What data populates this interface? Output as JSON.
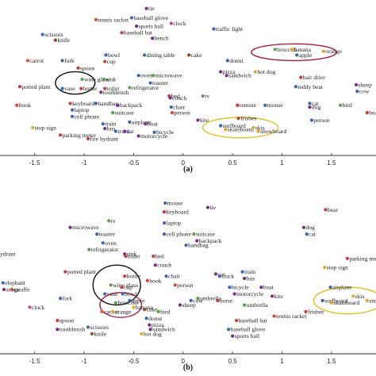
{
  "chart_data": [
    {
      "type": "scatter",
      "panel_label": "(a)",
      "xlim": [
        -1.85,
        1.95
      ],
      "x_ticks": [
        -1.5,
        -1,
        -0.5,
        0,
        0.5,
        1,
        1.5
      ],
      "tick_labels": [
        "-1.5",
        "-1",
        "-0.5",
        "0",
        "0.5",
        "1",
        "1.5"
      ],
      "grid": false,
      "points": [
        {
          "label": "tie",
          "x": -0.37,
          "y": 0.98,
          "c": "#7a2a8c"
        },
        {
          "label": "tennis racket",
          "x": -0.88,
          "y": 0.92,
          "c": "#d24a3a"
        },
        {
          "label": "baseball glove",
          "x": -0.52,
          "y": 0.93,
          "c": "#3a66b0"
        },
        {
          "label": "sports ball",
          "x": -0.47,
          "y": 0.885,
          "c": "#7a2a8c"
        },
        {
          "label": "clock",
          "x": -0.12,
          "y": 0.9,
          "c": "#c44c8a"
        },
        {
          "label": "traffic light",
          "x": 0.31,
          "y": 0.87,
          "c": "#3a66b0"
        },
        {
          "label": "baseball bat",
          "x": -0.62,
          "y": 0.85,
          "c": "#c73a3a"
        },
        {
          "label": "scissors",
          "x": -1.42,
          "y": 0.84,
          "c": "#3a66b0"
        },
        {
          "label": "knife",
          "x": -1.29,
          "y": 0.81,
          "c": "#8a4a2a"
        },
        {
          "label": "bench",
          "x": -0.31,
          "y": 0.82,
          "c": "#7a2a8c"
        },
        {
          "label": "broccoli",
          "x": 0.93,
          "y": 0.76,
          "c": "#5aa04a"
        },
        {
          "label": "banana",
          "x": 1.1,
          "y": 0.76,
          "c": "#d4b030"
        },
        {
          "label": "apple",
          "x": 1.15,
          "y": 0.73,
          "c": "#3a66b0"
        },
        {
          "label": "orange",
          "x": 1.42,
          "y": 0.75,
          "c": "#e0a030"
        },
        {
          "label": "carrot",
          "x": -1.57,
          "y": 0.7,
          "c": "#e06030"
        },
        {
          "label": "fork",
          "x": -1.22,
          "y": 0.7,
          "c": "#3a66b0"
        },
        {
          "label": "bowl",
          "x": -0.78,
          "y": 0.73,
          "c": "#3a66b0"
        },
        {
          "label": "cup",
          "x": -0.79,
          "y": 0.695,
          "c": "#c73a3a"
        },
        {
          "label": "dining table",
          "x": -0.39,
          "y": 0.73,
          "c": "#3a66b0"
        },
        {
          "label": "cake",
          "x": 0.06,
          "y": 0.73,
          "c": "#8a4a2a"
        },
        {
          "label": "donut",
          "x": 0.45,
          "y": 0.7,
          "c": "#3a66b0"
        },
        {
          "label": "hot dog",
          "x": 0.73,
          "y": 0.64,
          "c": "#d4b030"
        },
        {
          "label": "pizza",
          "x": 0.38,
          "y": 0.64,
          "c": "#7a2a8c"
        },
        {
          "label": "sandwich",
          "x": 0.44,
          "y": 0.62,
          "c": "#7a2a8c"
        },
        {
          "label": "spoon",
          "x": -1.06,
          "y": 0.66,
          "c": "#c73a3a"
        },
        {
          "label": "wine glass",
          "x": -1.02,
          "y": 0.6,
          "c": "#5aa04a"
        },
        {
          "label": "vase",
          "x": -1.22,
          "y": 0.55,
          "c": "#3a66b0"
        },
        {
          "label": "bottle",
          "x": -1.03,
          "y": 0.55,
          "c": "#c73a3a"
        },
        {
          "label": "potted plant",
          "x": -1.65,
          "y": 0.56,
          "c": "#c73a3a"
        },
        {
          "label": "sink",
          "x": -0.8,
          "y": 0.6,
          "c": "#5aa04a"
        },
        {
          "label": "toilet",
          "x": -0.79,
          "y": 0.55,
          "c": "#c73a3a"
        },
        {
          "label": "toothbrush",
          "x": -0.83,
          "y": 0.53,
          "c": "#7a2a8c"
        },
        {
          "label": "oven",
          "x": -0.45,
          "y": 0.62,
          "c": "#3a66b0"
        },
        {
          "label": "microwave",
          "x": -0.3,
          "y": 0.62,
          "c": "#5aa04a"
        },
        {
          "label": "toaster",
          "x": -0.33,
          "y": 0.58,
          "c": "#3a66b0"
        },
        {
          "label": "refrigerator",
          "x": -0.54,
          "y": 0.555,
          "c": "#5aa04a"
        },
        {
          "label": "hair drier",
          "x": 1.19,
          "y": 0.61,
          "c": "#c73a3a"
        },
        {
          "label": "teddy bear",
          "x": 1.14,
          "y": 0.56,
          "c": "#3a66b0"
        },
        {
          "label": "sheep",
          "x": 1.75,
          "y": 0.57,
          "c": "#7a2a8c"
        },
        {
          "label": "cow",
          "x": 1.76,
          "y": 0.535,
          "c": "#3a66b0"
        },
        {
          "label": "book",
          "x": -1.68,
          "y": 0.46,
          "c": "#d24a3a"
        },
        {
          "label": "keyboard",
          "x": -1.14,
          "y": 0.47,
          "c": "#c73a3a"
        },
        {
          "label": "laptop",
          "x": -1.12,
          "y": 0.435,
          "c": "#3a66b0"
        },
        {
          "label": "cell phone",
          "x": -1.12,
          "y": 0.4,
          "c": "#3a66b0"
        },
        {
          "label": "handbag",
          "x": -0.88,
          "y": 0.47,
          "c": "#3a66b0"
        },
        {
          "label": "backpack",
          "x": -0.66,
          "y": 0.46,
          "c": "#7a2a8c"
        },
        {
          "label": "suitcase",
          "x": -0.71,
          "y": 0.42,
          "c": "#5aa04a"
        },
        {
          "label": "bed",
          "x": -0.14,
          "y": 0.51,
          "c": "#c73a3a"
        },
        {
          "label": "couch",
          "x": -0.13,
          "y": 0.5,
          "c": "#7a2a8c"
        },
        {
          "label": "chair",
          "x": -0.12,
          "y": 0.45,
          "c": "#3a66b0"
        },
        {
          "label": "person",
          "x": -0.11,
          "y": 0.42,
          "c": "#d24a3a"
        },
        {
          "label": "tv",
          "x": 0.2,
          "y": 0.51,
          "c": "#5aa04a"
        },
        {
          "label": "remote",
          "x": 0.55,
          "y": 0.46,
          "c": "#c73a3a"
        },
        {
          "label": "mouse",
          "x": 0.83,
          "y": 0.46,
          "c": "#3a66b0"
        },
        {
          "label": "cat",
          "x": 1.28,
          "y": 0.47,
          "c": "#3a66b0"
        },
        {
          "label": "dog",
          "x": 1.28,
          "y": 0.45,
          "c": "#7a2a8c"
        },
        {
          "label": "bird",
          "x": 1.59,
          "y": 0.46,
          "c": "#5aa04a"
        },
        {
          "label": "bear",
          "x": 1.86,
          "y": 0.42,
          "c": "#c73a3a"
        },
        {
          "label": "person",
          "x": 1.3,
          "y": 0.38,
          "c": "#3a66b0"
        },
        {
          "label": "stop sign",
          "x": -1.52,
          "y": 0.34,
          "c": "#d4b030"
        },
        {
          "label": "train",
          "x": -0.81,
          "y": 0.36,
          "c": "#3a66b0"
        },
        {
          "label": "bus",
          "x": -0.79,
          "y": 0.335,
          "c": "#7a2a8c"
        },
        {
          "label": "airplane",
          "x": -0.54,
          "y": 0.37,
          "c": "#3a66b0"
        },
        {
          "label": "boat",
          "x": -0.38,
          "y": 0.36,
          "c": "#7a2a8c"
        },
        {
          "label": "kite",
          "x": 0.15,
          "y": 0.38,
          "c": "#7a2a8c"
        },
        {
          "label": "frisbee",
          "x": 0.56,
          "y": 0.39,
          "c": "#c73a3a"
        },
        {
          "label": "surfboard",
          "x": 0.38,
          "y": 0.35,
          "c": "#3a66b0"
        },
        {
          "label": "skateboard",
          "x": 0.43,
          "y": 0.33,
          "c": "#e0a030"
        },
        {
          "label": "skis",
          "x": 0.71,
          "y": 0.34,
          "c": "#d4b030"
        },
        {
          "label": "snowboard",
          "x": 0.76,
          "y": 0.32,
          "c": "#e0a030"
        },
        {
          "label": "truck",
          "x": -0.68,
          "y": 0.32,
          "c": "#3a66b0"
        },
        {
          "label": "car",
          "x": -0.59,
          "y": 0.32,
          "c": "#7a2a8c"
        },
        {
          "label": "bicycle",
          "x": -0.29,
          "y": 0.315,
          "c": "#3a66b0"
        },
        {
          "label": "motorcycle",
          "x": -0.45,
          "y": 0.295,
          "c": "#7a2a8c"
        },
        {
          "label": "parking meter",
          "x": -1.24,
          "y": 0.3,
          "c": "#c73a3a"
        },
        {
          "label": "fire hydrant",
          "x": -0.96,
          "y": 0.28,
          "c": "#c73a3a"
        }
      ],
      "ellipses": [
        {
          "cx": -1.09,
          "cy": 0.58,
          "rx": 0.2,
          "ry": 0.06,
          "color": "#111111"
        },
        {
          "cx": 1.12,
          "cy": 0.745,
          "rx": 0.43,
          "ry": 0.045,
          "color": "#a02040"
        },
        {
          "cx": 0.58,
          "cy": 0.34,
          "rx": 0.38,
          "ry": 0.055,
          "color": "#e0c020"
        }
      ]
    },
    {
      "type": "scatter",
      "panel_label": "(b)",
      "xlim": [
        -1.85,
        1.95
      ],
      "x_ticks": [
        -1.5,
        -1,
        -0.5,
        0,
        0.5,
        1,
        1.5
      ],
      "tick_labels": [
        "-1.5",
        "-1",
        "-0.5",
        "0",
        "0.5",
        "1",
        "1.5"
      ],
      "grid": false,
      "points": [
        {
          "label": "mouse",
          "x": -0.18,
          "y": 0.975,
          "c": "#3a66b0"
        },
        {
          "label": "keyboard",
          "x": -0.19,
          "y": 0.955,
          "c": "#c73a3a"
        },
        {
          "label": "tie",
          "x": 0.25,
          "y": 0.965,
          "c": "#7a2a8c"
        },
        {
          "label": "bear",
          "x": 1.44,
          "y": 0.96,
          "c": "#c73a3a"
        },
        {
          "label": "tv",
          "x": -0.75,
          "y": 0.935,
          "c": "#5aa04a"
        },
        {
          "label": "laptop",
          "x": -0.19,
          "y": 0.93,
          "c": "#3a66b0"
        },
        {
          "label": "dog",
          "x": 1.22,
          "y": 0.92,
          "c": "#7a2a8c"
        },
        {
          "label": "cat",
          "x": 1.25,
          "y": 0.905,
          "c": "#3a66b0"
        },
        {
          "label": "microwave",
          "x": -1.14,
          "y": 0.92,
          "c": "#7a2a8c"
        },
        {
          "label": "toaster",
          "x": -0.87,
          "y": 0.905,
          "c": "#3a66b0"
        },
        {
          "label": "oven",
          "x": -0.81,
          "y": 0.885,
          "c": "#3a66b0"
        },
        {
          "label": "refrigerator",
          "x": -0.95,
          "y": 0.87,
          "c": "#5aa04a"
        },
        {
          "label": "cell phone",
          "x": -0.19,
          "y": 0.905,
          "c": "#3a66b0"
        },
        {
          "label": "suitcase",
          "x": 0.11,
          "y": 0.905,
          "c": "#5aa04a"
        },
        {
          "label": "backpack",
          "x": 0.14,
          "y": 0.89,
          "c": "#7a2a8c"
        },
        {
          "label": "handbag",
          "x": 0.03,
          "y": 0.88,
          "c": "#3a66b0"
        },
        {
          "label": "hydrant",
          "x": -1.9,
          "y": 0.86,
          "c": "#c73a3a"
        },
        {
          "label": "sink",
          "x": -0.59,
          "y": 0.86,
          "c": "#7a2a8c"
        },
        {
          "label": "toilet",
          "x": -0.58,
          "y": 0.855,
          "c": "#c73a3a"
        },
        {
          "label": "bed",
          "x": -0.3,
          "y": 0.855,
          "c": "#c73a3a"
        },
        {
          "label": "couch",
          "x": -0.28,
          "y": 0.835,
          "c": "#7a2a8c"
        },
        {
          "label": "parking meter",
          "x": 1.66,
          "y": 0.85,
          "c": "#c73a3a"
        },
        {
          "label": "potted plant",
          "x": -1.19,
          "y": 0.82,
          "c": "#c73a3a"
        },
        {
          "label": "chair",
          "x": -0.17,
          "y": 0.81,
          "c": "#3a66b0"
        },
        {
          "label": "car",
          "x": 0.33,
          "y": 0.815,
          "c": "#7a2a8c"
        },
        {
          "label": "truck",
          "x": 0.37,
          "y": 0.81,
          "c": "#3a66b0"
        },
        {
          "label": "train",
          "x": 0.6,
          "y": 0.82,
          "c": "#3a66b0"
        },
        {
          "label": "bus",
          "x": 0.62,
          "y": 0.805,
          "c": "#7a2a8c"
        },
        {
          "label": "stop sign",
          "x": 1.43,
          "y": 0.83,
          "c": "#d4b030"
        },
        {
          "label": "bottle",
          "x": -0.59,
          "y": 0.81,
          "c": "#c73a3a"
        },
        {
          "label": "wine glass",
          "x": -0.73,
          "y": 0.79,
          "c": "#5aa04a"
        },
        {
          "label": "cup",
          "x": -0.62,
          "y": 0.785,
          "c": "#c73a3a"
        },
        {
          "label": "vase",
          "x": -0.79,
          "y": 0.77,
          "c": "#3a66b0"
        },
        {
          "label": "bowl",
          "x": -0.61,
          "y": 0.77,
          "c": "#3a66b0"
        },
        {
          "label": "book",
          "x": -0.36,
          "y": 0.8,
          "c": "#d24a3a"
        },
        {
          "label": "person",
          "x": -0.08,
          "y": 0.79,
          "c": "#d24a3a"
        },
        {
          "label": "bicycle",
          "x": 0.47,
          "y": 0.785,
          "c": "#3a66b0"
        },
        {
          "label": "motorcycle",
          "x": 0.52,
          "y": 0.77,
          "c": "#7a2a8c"
        },
        {
          "label": "boat",
          "x": 0.79,
          "y": 0.785,
          "c": "#7a2a8c"
        },
        {
          "label": "airplane",
          "x": 1.49,
          "y": 0.785,
          "c": "#3a66b0"
        },
        {
          "label": "kite",
          "x": 0.9,
          "y": 0.765,
          "c": "#7a2a8c"
        },
        {
          "label": "elephant",
          "x": -1.82,
          "y": 0.795,
          "c": "#3a66b0"
        },
        {
          "label": "zebra",
          "x": -1.81,
          "y": 0.78,
          "c": "#7a2a8c"
        },
        {
          "label": "giraffe",
          "x": -1.73,
          "y": 0.78,
          "c": "#d24a3a"
        },
        {
          "label": "fork",
          "x": -1.24,
          "y": 0.76,
          "c": "#3a66b0"
        },
        {
          "label": "spoon",
          "x": -1.27,
          "y": 0.71,
          "c": "#c73a3a"
        },
        {
          "label": "clock",
          "x": -1.55,
          "y": 0.74,
          "c": "#c44c8a"
        },
        {
          "label": "umbrella",
          "x": 0.15,
          "y": 0.76,
          "c": "#5aa04a"
        },
        {
          "label": "cow",
          "x": 0.08,
          "y": 0.755,
          "c": "#3a66b0"
        },
        {
          "label": "horse",
          "x": 0.35,
          "y": 0.755,
          "c": "#c73a3a"
        },
        {
          "label": "sheep",
          "x": -0.03,
          "y": 0.745,
          "c": "#7a2a8c"
        },
        {
          "label": "bird",
          "x": -0.25,
          "y": 0.73,
          "c": "#5aa04a"
        },
        {
          "label": "umbrella",
          "x": 0.62,
          "y": 0.745,
          "c": "#5aa04a"
        },
        {
          "label": "surfboard",
          "x": 1.41,
          "y": 0.755,
          "c": "#3a66b0"
        },
        {
          "label": "skis",
          "x": 1.72,
          "y": 0.765,
          "c": "#d4b030"
        },
        {
          "label": "skateboard",
          "x": 1.5,
          "y": 0.75,
          "c": "#e0a030"
        },
        {
          "label": "snowboard",
          "x": 1.86,
          "y": 0.755,
          "c": "#e0a030"
        },
        {
          "label": "frisbee",
          "x": 1.24,
          "y": 0.73,
          "c": "#c73a3a"
        },
        {
          "label": "apple",
          "x": -0.54,
          "y": 0.755,
          "c": "#3a66b0"
        },
        {
          "label": "broccoli",
          "x": -0.68,
          "y": 0.75,
          "c": "#5aa04a"
        },
        {
          "label": "banana",
          "x": -0.5,
          "y": 0.74,
          "c": "#d4b030"
        },
        {
          "label": "carrot",
          "x": -0.82,
          "y": 0.73,
          "c": "#e06030"
        },
        {
          "label": "orange",
          "x": -0.71,
          "y": 0.73,
          "c": "#e0a030"
        },
        {
          "label": "cake",
          "x": -0.39,
          "y": 0.735,
          "c": "#8a4a2a"
        },
        {
          "label": "donut",
          "x": -0.37,
          "y": 0.715,
          "c": "#3a66b0"
        },
        {
          "label": "pizza",
          "x": -0.34,
          "y": 0.7,
          "c": "#7a2a8c"
        },
        {
          "label": "sandwich",
          "x": -0.33,
          "y": 0.69,
          "c": "#7a2a8c"
        },
        {
          "label": "hot dog",
          "x": -0.42,
          "y": 0.68,
          "c": "#d4b030"
        },
        {
          "label": "toothbrush",
          "x": -1.27,
          "y": 0.69,
          "c": "#7a2a8c"
        },
        {
          "label": "scissors",
          "x": -0.96,
          "y": 0.695,
          "c": "#3a66b0"
        },
        {
          "label": "knife",
          "x": -0.92,
          "y": 0.68,
          "c": "#8a4a2a"
        },
        {
          "label": "tennis racket",
          "x": 0.92,
          "y": 0.72,
          "c": "#d24a3a"
        },
        {
          "label": "baseball bat",
          "x": 0.54,
          "y": 0.71,
          "c": "#c73a3a"
        },
        {
          "label": "baseball glove",
          "x": 0.46,
          "y": 0.69,
          "c": "#3a66b0"
        },
        {
          "label": "sports ball",
          "x": 0.5,
          "y": 0.675,
          "c": "#7a2a8c"
        }
      ],
      "ellipses": [
        {
          "cx": -0.67,
          "cy": 0.79,
          "rx": 0.24,
          "ry": 0.045,
          "color": "#111111"
        },
        {
          "cx": -0.63,
          "cy": 0.745,
          "rx": 0.21,
          "ry": 0.028,
          "color": "#a02040"
        },
        {
          "cx": 1.67,
          "cy": 0.755,
          "rx": 0.35,
          "ry": 0.03,
          "color": "#e0c020"
        }
      ]
    }
  ]
}
